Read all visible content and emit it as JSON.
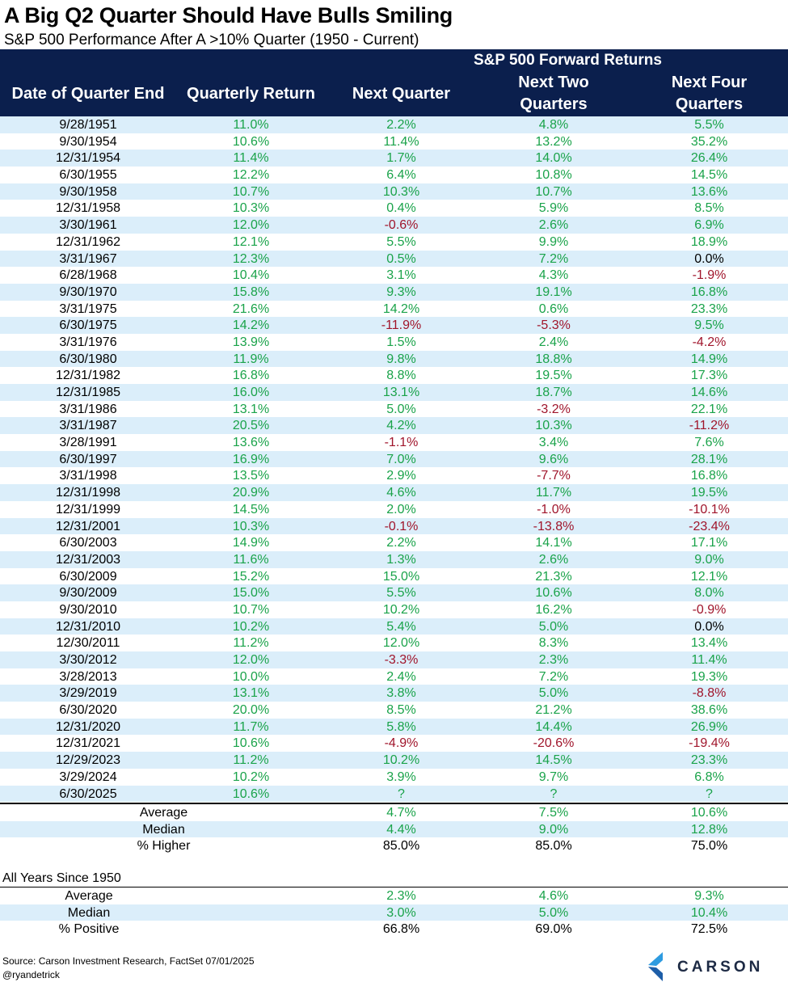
{
  "title": "A Big Q2 Quarter Should Have Bulls Smiling",
  "subtitle": "S&P 500 Performance After A >10% Quarter (1950 - Current)",
  "header": {
    "group": "S&P 500 Forward Returns",
    "date": "Date of Quarter End",
    "quarterly": "Quarterly Return",
    "next1": "Next Quarter",
    "next2_a": "Next Two",
    "next2_b": "Quarters",
    "next4_a": "Next Four",
    "next4_b": "Quarters"
  },
  "chart_data": {
    "type": "table",
    "columns": [
      "Date of Quarter End",
      "Quarterly Return",
      "Next Quarter",
      "Next Two Quarters",
      "Next Four Quarters"
    ],
    "rows": [
      [
        "9/28/1951",
        "11.0%",
        "2.2%",
        "4.8%",
        "5.5%"
      ],
      [
        "9/30/1954",
        "10.6%",
        "11.4%",
        "13.2%",
        "35.2%"
      ],
      [
        "12/31/1954",
        "11.4%",
        "1.7%",
        "14.0%",
        "26.4%"
      ],
      [
        "6/30/1955",
        "12.2%",
        "6.4%",
        "10.8%",
        "14.5%"
      ],
      [
        "9/30/1958",
        "10.7%",
        "10.3%",
        "10.7%",
        "13.6%"
      ],
      [
        "12/31/1958",
        "10.3%",
        "0.4%",
        "5.9%",
        "8.5%"
      ],
      [
        "3/30/1961",
        "12.0%",
        "-0.6%",
        "2.6%",
        "6.9%"
      ],
      [
        "12/31/1962",
        "12.1%",
        "5.5%",
        "9.9%",
        "18.9%"
      ],
      [
        "3/31/1967",
        "12.3%",
        "0.5%",
        "7.2%",
        "0.0%"
      ],
      [
        "6/28/1968",
        "10.4%",
        "3.1%",
        "4.3%",
        "-1.9%"
      ],
      [
        "9/30/1970",
        "15.8%",
        "9.3%",
        "19.1%",
        "16.8%"
      ],
      [
        "3/31/1975",
        "21.6%",
        "14.2%",
        "0.6%",
        "23.3%"
      ],
      [
        "6/30/1975",
        "14.2%",
        "-11.9%",
        "-5.3%",
        "9.5%"
      ],
      [
        "3/31/1976",
        "13.9%",
        "1.5%",
        "2.4%",
        "-4.2%"
      ],
      [
        "6/30/1980",
        "11.9%",
        "9.8%",
        "18.8%",
        "14.9%"
      ],
      [
        "12/31/1982",
        "16.8%",
        "8.8%",
        "19.5%",
        "17.3%"
      ],
      [
        "12/31/1985",
        "16.0%",
        "13.1%",
        "18.7%",
        "14.6%"
      ],
      [
        "3/31/1986",
        "13.1%",
        "5.0%",
        "-3.2%",
        "22.1%"
      ],
      [
        "3/31/1987",
        "20.5%",
        "4.2%",
        "10.3%",
        "-11.2%"
      ],
      [
        "3/28/1991",
        "13.6%",
        "-1.1%",
        "3.4%",
        "7.6%"
      ],
      [
        "6/30/1997",
        "16.9%",
        "7.0%",
        "9.6%",
        "28.1%"
      ],
      [
        "3/31/1998",
        "13.5%",
        "2.9%",
        "-7.7%",
        "16.8%"
      ],
      [
        "12/31/1998",
        "20.9%",
        "4.6%",
        "11.7%",
        "19.5%"
      ],
      [
        "12/31/1999",
        "14.5%",
        "2.0%",
        "-1.0%",
        "-10.1%"
      ],
      [
        "12/31/2001",
        "10.3%",
        "-0.1%",
        "-13.8%",
        "-23.4%"
      ],
      [
        "6/30/2003",
        "14.9%",
        "2.2%",
        "14.1%",
        "17.1%"
      ],
      [
        "12/31/2003",
        "11.6%",
        "1.3%",
        "2.6%",
        "9.0%"
      ],
      [
        "6/30/2009",
        "15.2%",
        "15.0%",
        "21.3%",
        "12.1%"
      ],
      [
        "9/30/2009",
        "15.0%",
        "5.5%",
        "10.6%",
        "8.0%"
      ],
      [
        "9/30/2010",
        "10.7%",
        "10.2%",
        "16.2%",
        "-0.9%"
      ],
      [
        "12/31/2010",
        "10.2%",
        "5.4%",
        "5.0%",
        "0.0%"
      ],
      [
        "12/30/2011",
        "11.2%",
        "12.0%",
        "8.3%",
        "13.4%"
      ],
      [
        "3/30/2012",
        "12.0%",
        "-3.3%",
        "2.3%",
        "11.4%"
      ],
      [
        "3/28/2013",
        "10.0%",
        "2.4%",
        "7.2%",
        "19.3%"
      ],
      [
        "3/29/2019",
        "13.1%",
        "3.8%",
        "5.0%",
        "-8.8%"
      ],
      [
        "6/30/2020",
        "20.0%",
        "8.5%",
        "21.2%",
        "38.6%"
      ],
      [
        "12/31/2020",
        "11.7%",
        "5.8%",
        "14.4%",
        "26.9%"
      ],
      [
        "12/31/2021",
        "10.6%",
        "-4.9%",
        "-20.6%",
        "-19.4%"
      ],
      [
        "12/29/2023",
        "11.2%",
        "10.2%",
        "14.5%",
        "23.3%"
      ],
      [
        "3/29/2024",
        "10.2%",
        "3.9%",
        "9.7%",
        "6.8%"
      ],
      [
        "6/30/2025",
        "10.6%",
        "?",
        "?",
        "?"
      ]
    ],
    "positive_color": "#1aa34a",
    "negative_color": "#a0152b"
  },
  "summary": [
    {
      "label": "Average",
      "n1": "4.7%",
      "n2": "7.5%",
      "n4": "10.6%",
      "style": "pos"
    },
    {
      "label": "Median",
      "n1": "4.4%",
      "n2": "9.0%",
      "n4": "12.8%",
      "style": "pos"
    },
    {
      "label": "% Higher",
      "n1": "85.0%",
      "n2": "85.0%",
      "n4": "75.0%",
      "style": "neu"
    }
  ],
  "all_years": {
    "title": "All Years Since 1950",
    "rows": [
      {
        "label": "Average",
        "n1": "2.3%",
        "n2": "4.6%",
        "n4": "9.3%",
        "style": "pos"
      },
      {
        "label": "Median",
        "n1": "3.0%",
        "n2": "5.0%",
        "n4": "10.4%",
        "style": "pos"
      },
      {
        "label": "% Positive",
        "n1": "66.8%",
        "n2": "69.0%",
        "n4": "72.5%",
        "style": "neu"
      }
    ]
  },
  "footer": {
    "source": "Source: Carson Investment Research, FactSet 07/01/2025",
    "handle": "@ryandetrick",
    "logo_text": "CARSON"
  },
  "colors": {
    "header_bg": "#0b1f4d",
    "row_alt": "#dbeefa"
  }
}
